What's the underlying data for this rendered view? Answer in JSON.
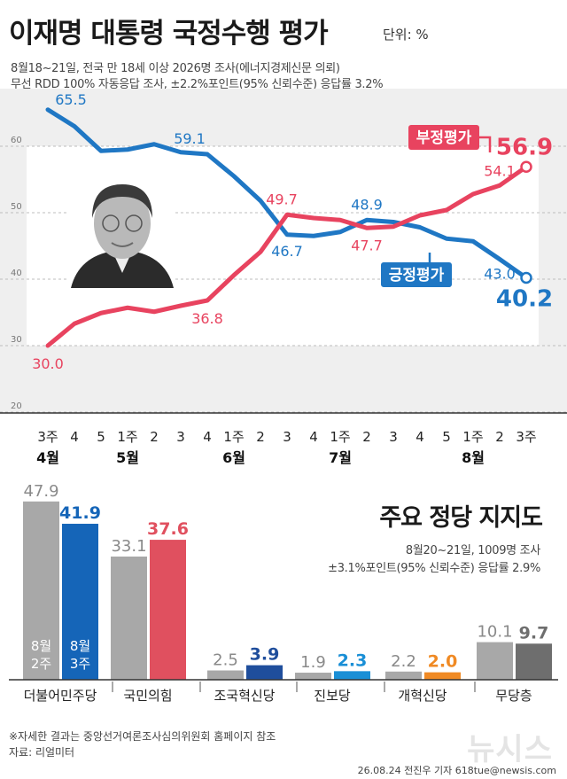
{
  "header": {
    "title": "이재명 대통령 국정수행 평가",
    "unit": "단위: %",
    "survey_line1": "8월18~21일, 전국 만 18세 이상 2026명 조사(에너지경제신문 의뢰)",
    "survey_line2": "무선 RDD 100% 자동응답 조사, ±2.2%포인트(95% 신뢰수준) 응답률 3.2%"
  },
  "colors": {
    "positive": "#1f77c4",
    "negative": "#e8435f",
    "prev_bar": "#a8a8a8",
    "minju_now": "#1565b8",
    "ppp_now": "#e0505f",
    "cho_now": "#1f4e9c",
    "jinbo_now": "#1a8fd6",
    "gaehyuk_now": "#f08a24",
    "none_now": "#6e6e6e"
  },
  "chart_data": [
    {
      "type": "line",
      "x": [
        "3주",
        "4",
        "5",
        "1주",
        "2",
        "3",
        "4",
        "1주",
        "2",
        "3",
        "4",
        "1주",
        "2",
        "3",
        "4",
        "5",
        "1주",
        "2",
        "3주"
      ],
      "months": [
        {
          "label": "4월",
          "index": 0
        },
        {
          "label": "5월",
          "index": 3
        },
        {
          "label": "6월",
          "index": 7
        },
        {
          "label": "7월",
          "index": 11
        },
        {
          "label": "8월",
          "index": 16
        }
      ],
      "ylim": [
        20,
        70
      ],
      "yticks": [
        20,
        30,
        40,
        50,
        60
      ],
      "series": [
        {
          "name": "긍정평가",
          "color_key": "positive",
          "values": [
            65.5,
            63.0,
            59.3,
            59.5,
            60.3,
            59.1,
            58.8,
            55.5,
            51.8,
            46.7,
            46.5,
            47.1,
            48.9,
            48.6,
            47.8,
            46.1,
            45.7,
            43.0,
            40.2
          ]
        },
        {
          "name": "부정평가",
          "color_key": "negative",
          "values": [
            30.0,
            33.3,
            34.9,
            35.7,
            35.1,
            36.0,
            36.8,
            40.6,
            44.1,
            49.7,
            49.2,
            48.9,
            47.7,
            47.9,
            49.6,
            50.4,
            52.8,
            54.1,
            56.9
          ]
        }
      ],
      "labels": [
        {
          "series": 0,
          "index": 0,
          "text": "65.5"
        },
        {
          "series": 0,
          "index": 5,
          "text": "59.1"
        },
        {
          "series": 0,
          "index": 9,
          "text": "46.7"
        },
        {
          "series": 0,
          "index": 12,
          "text": "48.9"
        },
        {
          "series": 0,
          "index": 17,
          "text": "43.0"
        },
        {
          "series": 0,
          "index": 18,
          "text": "40.2"
        },
        {
          "series": 1,
          "index": 0,
          "text": "30.0"
        },
        {
          "series": 1,
          "index": 6,
          "text": "36.8"
        },
        {
          "series": 1,
          "index": 9,
          "text": "49.7"
        },
        {
          "series": 1,
          "index": 12,
          "text": "47.7"
        },
        {
          "series": 1,
          "index": 17,
          "text": "54.1"
        },
        {
          "series": 1,
          "index": 18,
          "text": "56.9"
        }
      ]
    },
    {
      "type": "bar",
      "title": "주요 정당 지지도",
      "categories": [
        "더불어민주당",
        "국민의힘",
        "조국혁신당",
        "진보당",
        "개혁신당",
        "무당층"
      ],
      "series": [
        {
          "name": "8월 2주",
          "values": [
            47.9,
            33.1,
            2.5,
            1.9,
            2.2,
            10.1
          ]
        },
        {
          "name": "8월 3주",
          "values": [
            41.9,
            37.6,
            3.9,
            2.3,
            2.0,
            9.7
          ]
        }
      ],
      "now_color_keys": [
        "minju_now",
        "ppp_now",
        "cho_now",
        "jinbo_now",
        "gaehyuk_now",
        "none_now"
      ]
    }
  ],
  "party": {
    "title": "주요 정당 지지도",
    "info_line1": "8월20~21일, 1009명 조사",
    "info_line2": "±3.1%포인트(95% 신뢰수준) 응답률 2.9%",
    "legend_prev": [
      "8월",
      "2주"
    ],
    "legend_now": [
      "8월",
      "3주"
    ]
  },
  "footer": {
    "note": "※자세한 결과는 중앙선거여론조사심의위원회 홈페이지 참조",
    "source": "자료: 리얼미터",
    "credit": "26.08.24 전진우 기자 618tue@newsis.com",
    "watermark": "뉴시스"
  }
}
